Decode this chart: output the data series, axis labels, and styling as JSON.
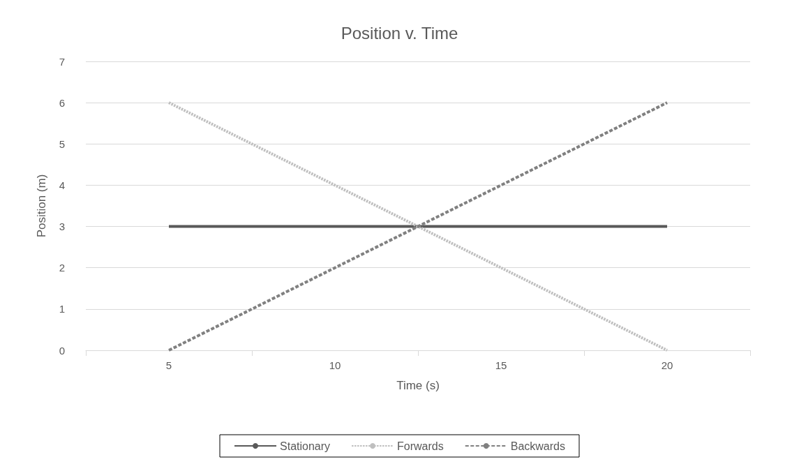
{
  "chart_data": {
    "type": "line",
    "title": "Position v. Time",
    "xlabel": "Time (s)",
    "ylabel": "Position (m)",
    "categories": [
      "5",
      "10",
      "15",
      "20"
    ],
    "series": [
      {
        "name": "Stationary",
        "color": "#595959",
        "values": [
          3,
          3,
          3,
          3
        ],
        "line_style": "solid"
      },
      {
        "name": "Forwards",
        "color": "#bfbfbf",
        "values": [
          6,
          4,
          2,
          0
        ],
        "line_style": "dashed"
      },
      {
        "name": "Backwards",
        "color": "#808080",
        "values": [
          0,
          2,
          4,
          6
        ],
        "line_style": "dashed"
      }
    ],
    "ylim": [
      0,
      7
    ],
    "yticks": [
      0,
      1,
      2,
      3,
      4,
      5,
      6,
      7
    ],
    "grid": "y",
    "legend": "bottom",
    "marker": "none"
  }
}
